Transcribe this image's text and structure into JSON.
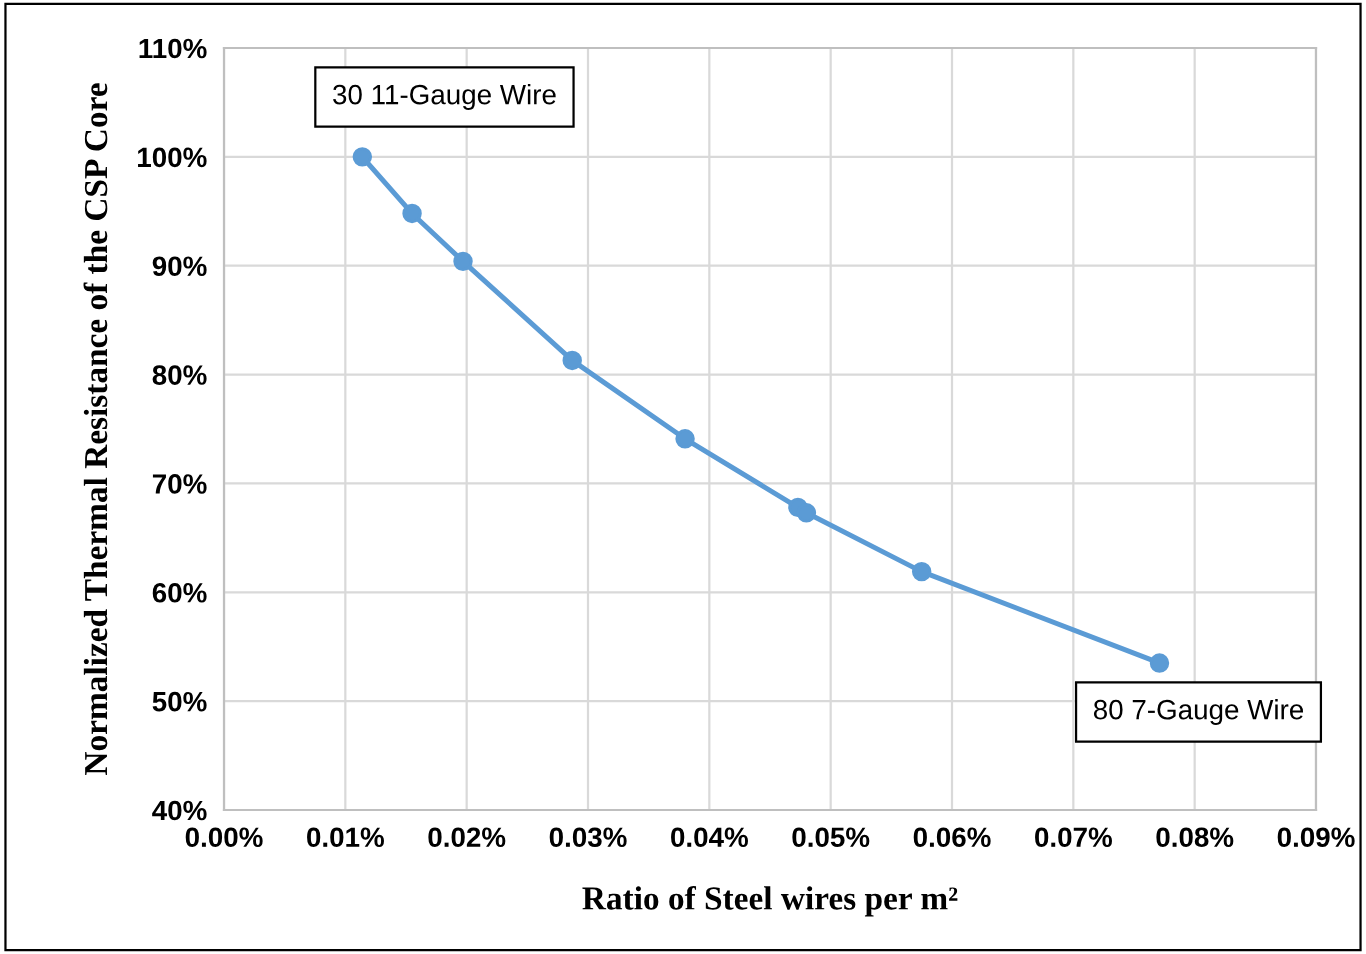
{
  "chart_data": {
    "type": "line",
    "xlabel": "Ratio of Steel wires per m²",
    "ylabel": "Normalized Thermal Resistance of the CSP Core",
    "x": [
      0.0114,
      0.0155,
      0.0197,
      0.0287,
      0.038,
      0.0473,
      0.048,
      0.0575,
      0.0771
    ],
    "series": [
      {
        "color": "#5b9bd5",
        "values": [
          100,
          94.8,
          90.4,
          81.3,
          74.1,
          67.8,
          67.3,
          61.9,
          53.5
        ]
      }
    ],
    "marker": "circle",
    "grid": true,
    "xlim": [
      0,
      0.09
    ],
    "xticks": [
      {
        "value": 0,
        "label": "0.00%"
      },
      {
        "value": 0.01,
        "label": "0.01%"
      },
      {
        "value": 0.02,
        "label": "0.02%"
      },
      {
        "value": 0.03,
        "label": "0.03%"
      },
      {
        "value": 0.04,
        "label": "0.04%"
      },
      {
        "value": 0.05,
        "label": "0.05%"
      },
      {
        "value": 0.06,
        "label": "0.06%"
      },
      {
        "value": 0.07,
        "label": "0.07%"
      },
      {
        "value": 0.08,
        "label": "0.08%"
      },
      {
        "value": 0.09,
        "label": "0.09%"
      }
    ],
    "ylim": [
      40,
      110
    ],
    "yticks": [
      {
        "value": 40,
        "label": "40%"
      },
      {
        "value": 50,
        "label": "50%"
      },
      {
        "value": 60,
        "label": "60%"
      },
      {
        "value": 70,
        "label": "70%"
      },
      {
        "value": 80,
        "label": "80%"
      },
      {
        "value": 90,
        "label": "90%"
      },
      {
        "value": 100,
        "label": "100%"
      },
      {
        "value": 110,
        "label": "110%"
      }
    ],
    "annotations": [
      {
        "text": "30 11-Gauge Wire",
        "x": 0.0114,
        "y": 100
      },
      {
        "text": "80 7-Gauge Wire",
        "x": 0.0771,
        "y": 53.5
      }
    ]
  }
}
